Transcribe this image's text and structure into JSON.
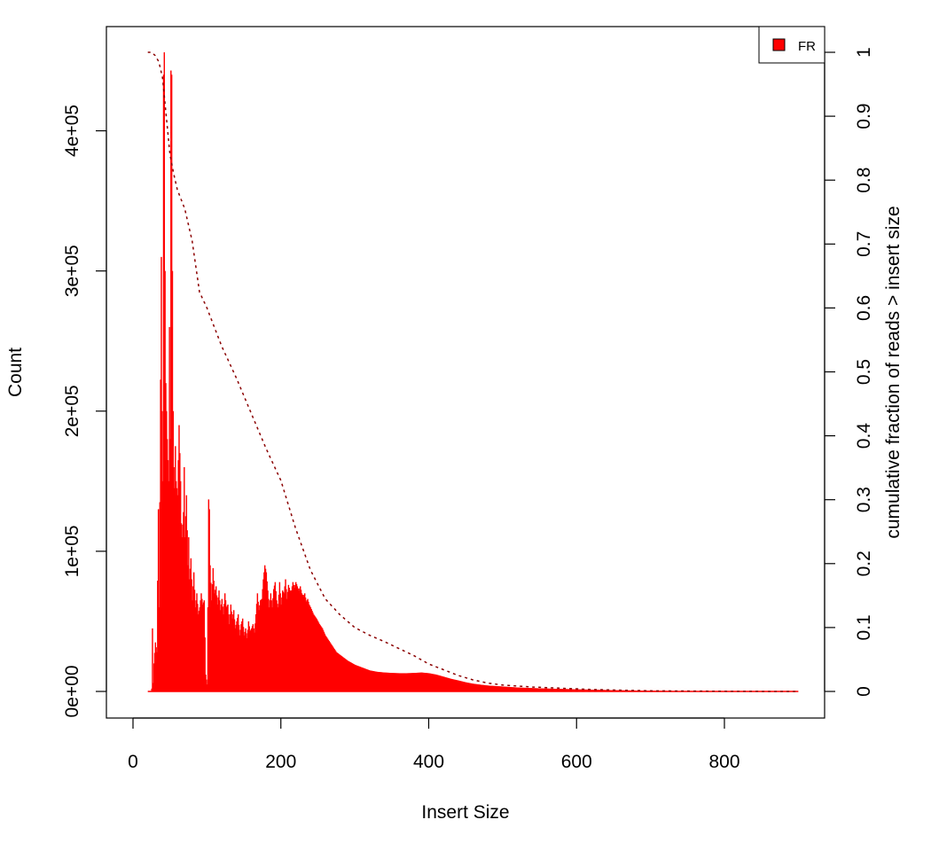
{
  "chart_data": {
    "type": "bar",
    "title": "",
    "xlabel": "Insert Size",
    "ylabel": "Count",
    "y2label": "cumulative fraction of reads > insert size",
    "xlim": [
      0,
      900
    ],
    "ylim": [
      0,
      456000
    ],
    "y2lim": [
      0,
      1
    ],
    "x_ticks": [
      0,
      200,
      400,
      600,
      800
    ],
    "x_tick_labels": [
      "0",
      "200",
      "400",
      "600",
      "800"
    ],
    "y_ticks": [
      0,
      100000,
      200000,
      300000,
      400000
    ],
    "y_tick_labels": [
      "0e+00",
      "1e+05",
      "2e+05",
      "3e+05",
      "4e+05"
    ],
    "y2_ticks": [
      0,
      0.1,
      0.2,
      0.3,
      0.4,
      0.5,
      0.6,
      0.7,
      0.8,
      0.9,
      1
    ],
    "y2_tick_labels": [
      "0",
      "0.1",
      "0.2",
      "0.3",
      "0.4",
      "0.5",
      "0.6",
      "0.7",
      "0.8",
      "0.9",
      "1"
    ],
    "legend": {
      "position": "top-right",
      "entries": [
        {
          "label": "FR",
          "color": "#ff0000"
        }
      ]
    },
    "series": [
      {
        "name": "FR",
        "kind": "histogram",
        "color": "#ff0000",
        "points": [
          [
            20,
            0
          ],
          [
            24,
            0
          ],
          [
            25,
            2000
          ],
          [
            26,
            45000
          ],
          [
            27,
            6000
          ],
          [
            28,
            20000
          ],
          [
            30,
            35000
          ],
          [
            32,
            28000
          ],
          [
            34,
            130000
          ],
          [
            35,
            60000
          ],
          [
            36,
            135000
          ],
          [
            38,
            310000
          ],
          [
            39,
            200000
          ],
          [
            40,
            150000
          ],
          [
            41,
            440000
          ],
          [
            42,
            456000
          ],
          [
            43,
            300000
          ],
          [
            44,
            220000
          ],
          [
            46,
            180000
          ],
          [
            48,
            150000
          ],
          [
            49,
            260000
          ],
          [
            50,
            180000
          ],
          [
            51,
            443000
          ],
          [
            52,
            440000
          ],
          [
            53,
            300000
          ],
          [
            54,
            200000
          ],
          [
            55,
            160000
          ],
          [
            56,
            145000
          ],
          [
            57,
            175000
          ],
          [
            58,
            150000
          ],
          [
            60,
            140000
          ],
          [
            62,
            190000
          ],
          [
            64,
            150000
          ],
          [
            65,
            120000
          ],
          [
            66,
            110000
          ],
          [
            68,
            128000
          ],
          [
            69,
            160000
          ],
          [
            70,
            110000
          ],
          [
            72,
            140000
          ],
          [
            74,
            90000
          ],
          [
            75,
            110000
          ],
          [
            76,
            80000
          ],
          [
            78,
            95000
          ],
          [
            80,
            65000
          ],
          [
            82,
            85000
          ],
          [
            84,
            60000
          ],
          [
            86,
            70000
          ],
          [
            88,
            55000
          ],
          [
            90,
            60000
          ],
          [
            92,
            70000
          ],
          [
            94,
            62000
          ],
          [
            96,
            65000
          ],
          [
            98,
            12000
          ],
          [
            100,
            5000
          ],
          [
            101,
            60000
          ],
          [
            102,
            137000
          ],
          [
            103,
            130000
          ],
          [
            104,
            90000
          ],
          [
            106,
            65000
          ],
          [
            108,
            88000
          ],
          [
            110,
            70000
          ],
          [
            112,
            75000
          ],
          [
            114,
            62000
          ],
          [
            116,
            72000
          ],
          [
            118,
            58000
          ],
          [
            120,
            66000
          ],
          [
            122,
            55000
          ],
          [
            124,
            70000
          ],
          [
            126,
            60000
          ],
          [
            128,
            62000
          ],
          [
            130,
            48000
          ],
          [
            132,
            62000
          ],
          [
            134,
            52000
          ],
          [
            136,
            58000
          ],
          [
            138,
            45000
          ],
          [
            140,
            50000
          ],
          [
            142,
            55000
          ],
          [
            144,
            40000
          ],
          [
            146,
            48000
          ],
          [
            148,
            52000
          ],
          [
            150,
            40000
          ],
          [
            152,
            45000
          ],
          [
            154,
            38000
          ],
          [
            156,
            50000
          ],
          [
            158,
            43000
          ],
          [
            160,
            45000
          ],
          [
            162,
            48000
          ],
          [
            164,
            42000
          ],
          [
            166,
            55000
          ],
          [
            168,
            70000
          ],
          [
            170,
            58000
          ],
          [
            172,
            65000
          ],
          [
            174,
            66000
          ],
          [
            176,
            80000
          ],
          [
            178,
            90000
          ],
          [
            180,
            85000
          ],
          [
            182,
            72000
          ],
          [
            184,
            60000
          ],
          [
            186,
            70000
          ],
          [
            188,
            60000
          ],
          [
            190,
            73000
          ],
          [
            192,
            78000
          ],
          [
            194,
            65000
          ],
          [
            196,
            60000
          ],
          [
            198,
            78000
          ],
          [
            200,
            62000
          ],
          [
            202,
            72000
          ],
          [
            204,
            70000
          ],
          [
            206,
            80000
          ],
          [
            208,
            66000
          ],
          [
            210,
            76000
          ],
          [
            212,
            72000
          ],
          [
            214,
            72000
          ],
          [
            216,
            78000
          ],
          [
            218,
            74000
          ],
          [
            220,
            78000
          ],
          [
            222,
            75000
          ],
          [
            224,
            72000
          ],
          [
            226,
            75000
          ],
          [
            228,
            70000
          ],
          [
            230,
            68000
          ],
          [
            232,
            70000
          ],
          [
            234,
            64000
          ],
          [
            236,
            66000
          ],
          [
            238,
            62000
          ],
          [
            240,
            60000
          ],
          [
            244,
            55000
          ],
          [
            248,
            52000
          ],
          [
            252,
            48000
          ],
          [
            256,
            45000
          ],
          [
            260,
            40000
          ],
          [
            265,
            36000
          ],
          [
            270,
            32000
          ],
          [
            275,
            28000
          ],
          [
            280,
            26000
          ],
          [
            290,
            22000
          ],
          [
            300,
            19000
          ],
          [
            310,
            17000
          ],
          [
            320,
            15000
          ],
          [
            330,
            14000
          ],
          [
            340,
            13500
          ],
          [
            350,
            13200
          ],
          [
            360,
            13000
          ],
          [
            370,
            13000
          ],
          [
            380,
            13200
          ],
          [
            390,
            13500
          ],
          [
            400,
            13000
          ],
          [
            410,
            12000
          ],
          [
            420,
            10500
          ],
          [
            430,
            9000
          ],
          [
            440,
            7800
          ],
          [
            450,
            6500
          ],
          [
            460,
            5500
          ],
          [
            470,
            4800
          ],
          [
            480,
            4200
          ],
          [
            500,
            3500
          ],
          [
            520,
            2800
          ],
          [
            550,
            2200
          ],
          [
            600,
            1500
          ],
          [
            650,
            900
          ],
          [
            700,
            500
          ],
          [
            750,
            250
          ],
          [
            800,
            120
          ],
          [
            850,
            50
          ],
          [
            900,
            0
          ]
        ]
      },
      {
        "name": "cumulative",
        "kind": "cumulative",
        "color": "#8b0000",
        "style": "dashed",
        "points": [
          [
            20,
            1.0
          ],
          [
            25,
            1.0
          ],
          [
            30,
            0.995
          ],
          [
            35,
            0.985
          ],
          [
            40,
            0.96
          ],
          [
            45,
            0.9
          ],
          [
            50,
            0.84
          ],
          [
            55,
            0.81
          ],
          [
            60,
            0.785
          ],
          [
            70,
            0.755
          ],
          [
            80,
            0.705
          ],
          [
            90,
            0.625
          ],
          [
            100,
            0.6
          ],
          [
            110,
            0.57
          ],
          [
            120,
            0.54
          ],
          [
            140,
            0.49
          ],
          [
            160,
            0.435
          ],
          [
            180,
            0.38
          ],
          [
            200,
            0.33
          ],
          [
            220,
            0.255
          ],
          [
            240,
            0.19
          ],
          [
            260,
            0.145
          ],
          [
            280,
            0.12
          ],
          [
            300,
            0.1
          ],
          [
            320,
            0.088
          ],
          [
            340,
            0.078
          ],
          [
            360,
            0.067
          ],
          [
            380,
            0.056
          ],
          [
            400,
            0.043
          ],
          [
            420,
            0.034
          ],
          [
            440,
            0.025
          ],
          [
            460,
            0.018
          ],
          [
            480,
            0.013
          ],
          [
            500,
            0.01
          ],
          [
            540,
            0.007
          ],
          [
            580,
            0.005
          ],
          [
            620,
            0.003
          ],
          [
            660,
            0.002
          ],
          [
            700,
            0.001
          ],
          [
            760,
            0.0005
          ],
          [
            820,
            0.0002
          ],
          [
            900,
            0.0
          ]
        ]
      }
    ]
  }
}
